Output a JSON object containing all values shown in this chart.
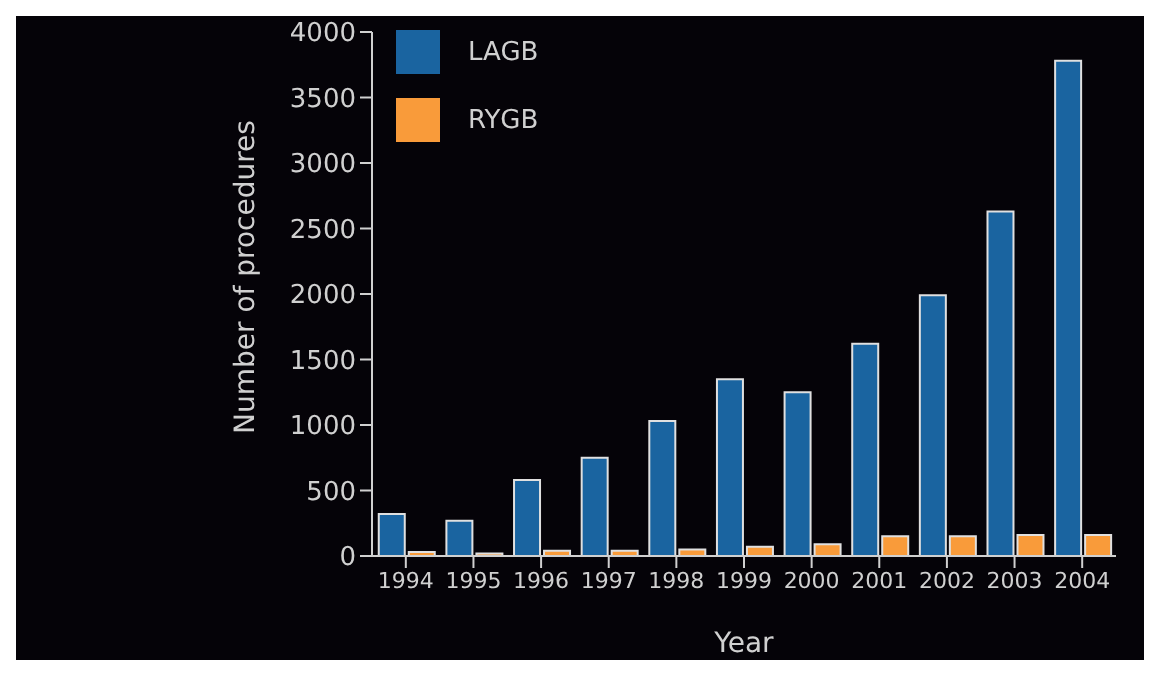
{
  "chart_data": {
    "type": "bar",
    "xlabel": "Year",
    "ylabel": "Number of procedures",
    "categories": [
      "1994",
      "1995",
      "1996",
      "1997",
      "1998",
      "1999",
      "2000",
      "2001",
      "2002",
      "2003",
      "2004"
    ],
    "series": [
      {
        "name": "LAGB",
        "color": "#1a64a0",
        "values": [
          320,
          270,
          580,
          750,
          1030,
          1350,
          1250,
          1620,
          1990,
          2630,
          3780
        ]
      },
      {
        "name": "RYGB",
        "color": "#f99b3a",
        "values": [
          30,
          20,
          40,
          40,
          50,
          70,
          90,
          150,
          150,
          160,
          160
        ]
      }
    ],
    "ylim": [
      0,
      4000
    ],
    "yticks": [
      0,
      500,
      1000,
      1500,
      2000,
      2500,
      3000,
      3500,
      4000
    ],
    "grid": false,
    "legend": "top left"
  }
}
